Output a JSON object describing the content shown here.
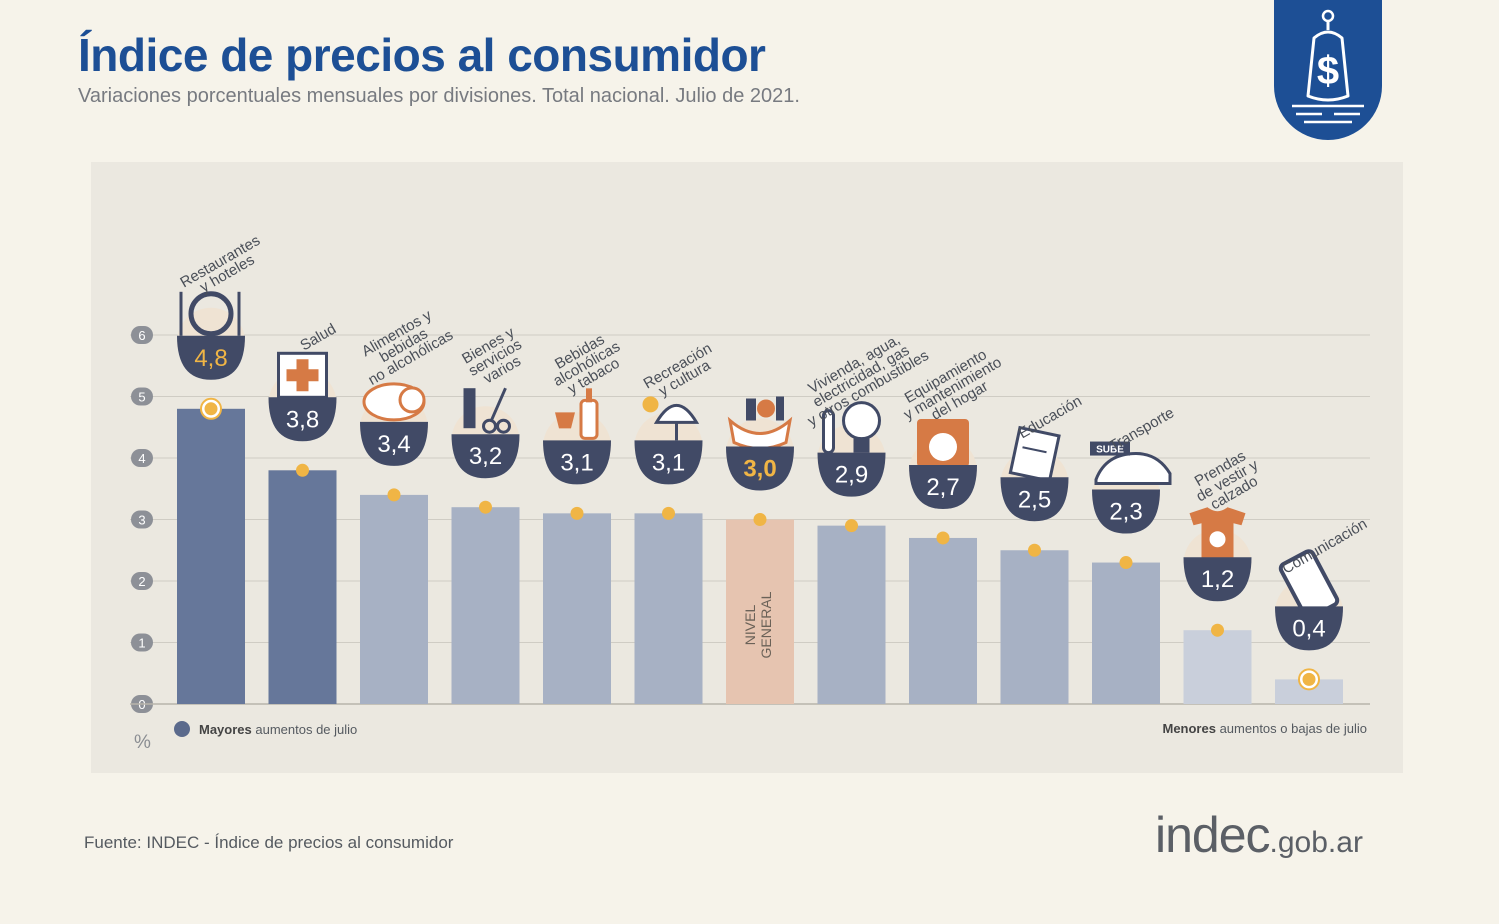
{
  "header": {
    "title": "Índice de precios al consumidor",
    "subtitle": "Variaciones porcentuales mensuales por divisiones. Total nacional. Julio de 2021."
  },
  "badge": {
    "icon": "price-tag-dollar-icon",
    "color": "#1d4f95"
  },
  "legend": {
    "left_bold": "Mayores",
    "left_rest": " aumentos de julio",
    "right_bold": "Menores",
    "right_rest": " aumentos o bajas de julio",
    "unit": "%"
  },
  "footer": {
    "source": "Fuente: INDEC - Índice de precios al consumidor",
    "logo_main": "indec",
    "logo_domain": ".gob.ar"
  },
  "chart_data": {
    "type": "bar",
    "ylim": [
      0,
      6
    ],
    "yticks": [
      0,
      1,
      2,
      3,
      4,
      5,
      6
    ],
    "grid": true,
    "categories": [
      "Restaurantes\ny hoteles",
      "Salud",
      "Alimentos y\nbebidas\nno alcohólicas",
      "Bienes y\nservicios\nvarios",
      "Bebidas\nalcohólicas\ny tabaco",
      "Recreación\ny cultura",
      "",
      "Vivienda, agua,\nelectricidad, gas\ny otros combustibles",
      "Equipamiento\ny mantenimiento\ndel hogar",
      "Educación",
      "Transporte",
      "Prendas\nde vestir y\ncalzado",
      "Comunicación"
    ],
    "values": [
      4.8,
      3.8,
      3.4,
      3.2,
      3.1,
      3.1,
      3.0,
      2.9,
      2.7,
      2.5,
      2.3,
      1.2,
      0.4
    ],
    "value_labels": [
      "4,8",
      "3,8",
      "3,4",
      "3,2",
      "3,1",
      "3,1",
      "3,0",
      "2,9",
      "2,7",
      "2,5",
      "2,3",
      "1,2",
      "0,4"
    ],
    "groups": [
      "max",
      "max",
      "mid",
      "mid",
      "mid",
      "mid",
      "general",
      "mid",
      "mid",
      "mid",
      "mid",
      "min",
      "min"
    ],
    "general_bar_label": "NIVEL\nGENERAL",
    "colors": {
      "max": "#66779a",
      "mid": "#a7b1c4",
      "min": "#c9cfdb",
      "general": "#e6c4b0",
      "label_bubble": "#414a66",
      "label_text": "#ffffff",
      "general_label_text": "#f0b545",
      "highlight_dot": "#f0b545",
      "axis_badge": "#8d9097",
      "icon_accent": "#d67a45"
    },
    "icons": [
      "cutlery-plate-icon",
      "medical-cross-icon",
      "roast-chicken-icon",
      "comb-scissors-icon",
      "wine-bottle-icon",
      "umbrella-sun-icon",
      "shopping-bag-icon",
      "light-bulb-icon",
      "washing-machine-icon",
      "book-icon",
      "sube-card-car-icon",
      "tshirt-sandal-icon",
      "smartphone-icon"
    ]
  }
}
